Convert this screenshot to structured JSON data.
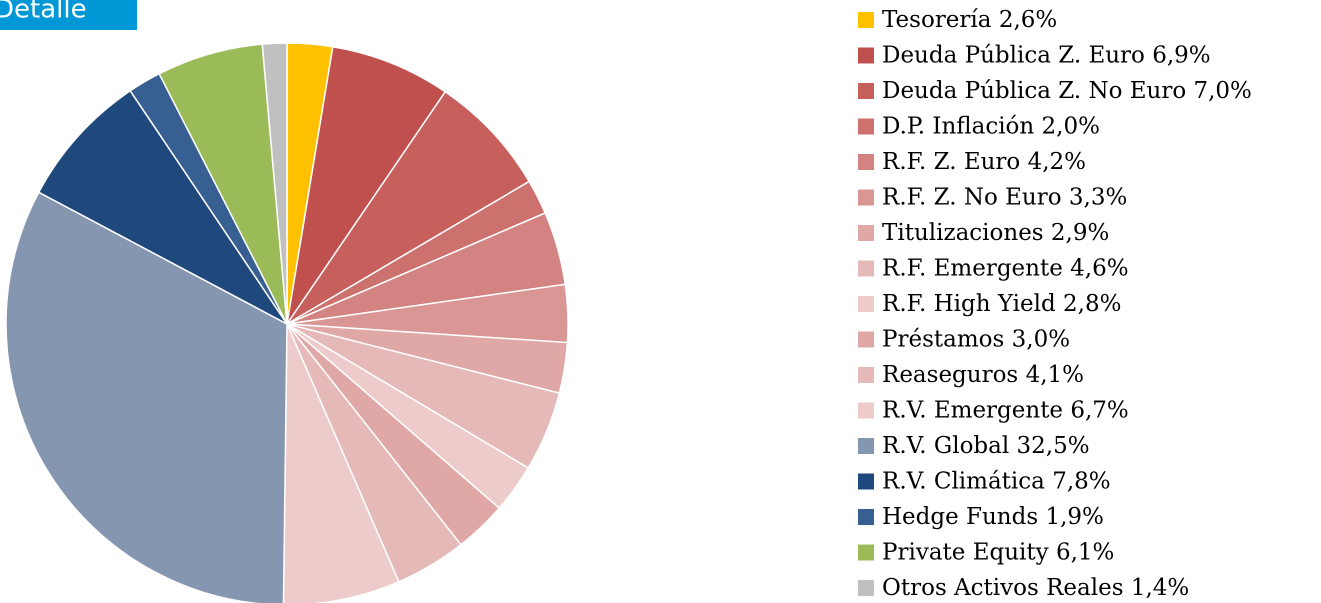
{
  "header": {
    "title": "Detalle"
  },
  "chart_data": {
    "type": "pie",
    "categories": [
      "Tesorería",
      "Deuda Pública Z. Euro",
      "Deuda Pública Z. No Euro",
      "D.P. Inflación",
      "R.F. Z. Euro",
      "R.F. Z. No Euro",
      "Titulizaciones",
      "R.F. Emergente",
      "R.F. High Yield",
      "Préstamos",
      "Reaseguros",
      "R.V. Emergente",
      "R.V. Global",
      "R.V. Climática",
      "Hedge Funds",
      "Private Equity",
      "Otros Activos Reales"
    ],
    "values": [
      2.6,
      6.9,
      7.0,
      2.0,
      4.2,
      3.3,
      2.9,
      4.6,
      2.8,
      3.0,
      4.1,
      6.7,
      32.5,
      7.8,
      1.9,
      6.1,
      1.4
    ],
    "value_labels": [
      "2,6%",
      "6,9%",
      "7,0%",
      "2,0%",
      "4,2%",
      "3,3%",
      "2,9%",
      "4,6%",
      "2,8%",
      "3,0%",
      "4,1%",
      "6,7%",
      "32,5%",
      "7,8%",
      "1,9%",
      "6,1%",
      "1,4%"
    ],
    "colors": [
      "#FFC000",
      "#C0504D",
      "#C75F5C",
      "#CD716E",
      "#D38381",
      "#D99694",
      "#DFA8A6",
      "#E5B9B8",
      "#ECCBCA",
      "#DFA8A6",
      "#E5B9B8",
      "#ECCBCA",
      "#8496B0",
      "#1F497D",
      "#375F92",
      "#9BBB59",
      "#C0C0C0"
    ],
    "legend": "right"
  }
}
